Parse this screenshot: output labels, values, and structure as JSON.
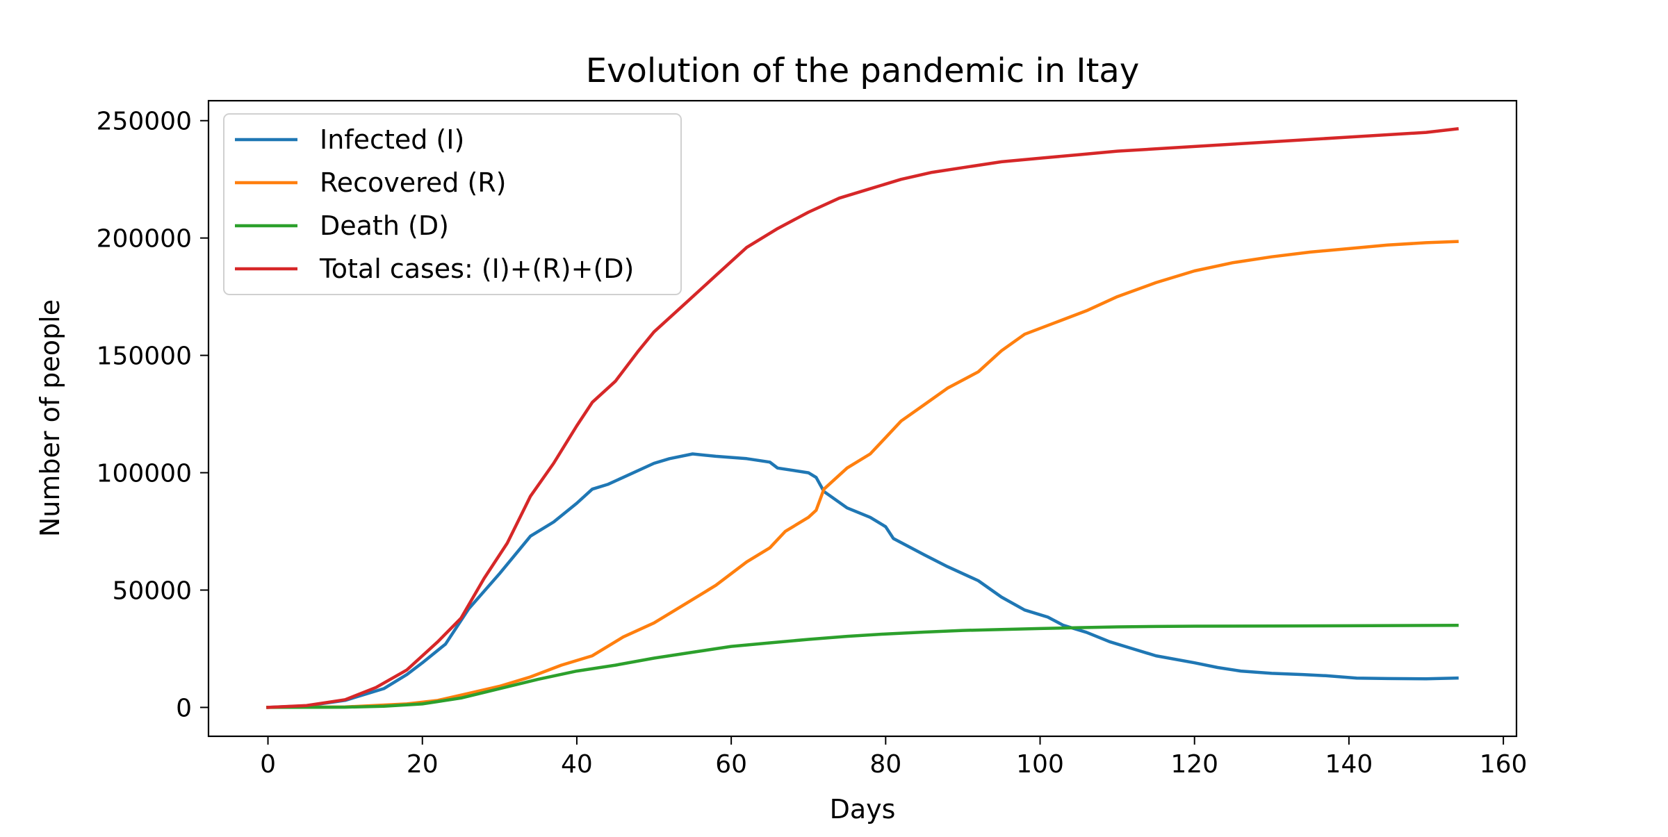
{
  "chart_data": {
    "type": "line",
    "title": "Evolution of the pandemic in Itay",
    "xlabel": "Days",
    "ylabel": "Number of people",
    "xlim": [
      -7.7,
      161.7
    ],
    "ylim": [
      -12300,
      258500
    ],
    "xticks": [
      0,
      20,
      40,
      60,
      80,
      100,
      120,
      140,
      160
    ],
    "yticks": [
      0,
      50000,
      100000,
      150000,
      200000,
      250000
    ],
    "legend_position": "top-left",
    "series": [
      {
        "name": "Infected (I)",
        "color": "#1f77b4",
        "points": [
          [
            0,
            0
          ],
          [
            5,
            700
          ],
          [
            10,
            3000
          ],
          [
            15,
            8000
          ],
          [
            18,
            14000
          ],
          [
            20,
            19000
          ],
          [
            23,
            27000
          ],
          [
            26,
            42000
          ],
          [
            30,
            57000
          ],
          [
            34,
            73000
          ],
          [
            37,
            79000
          ],
          [
            40,
            87000
          ],
          [
            42,
            93000
          ],
          [
            44,
            95000
          ],
          [
            46,
            98000
          ],
          [
            50,
            104000
          ],
          [
            52,
            106000
          ],
          [
            55,
            108000
          ],
          [
            58,
            107000
          ],
          [
            62,
            106000
          ],
          [
            65,
            104500
          ],
          [
            66,
            102000
          ],
          [
            70,
            100000
          ],
          [
            71,
            98000
          ],
          [
            72,
            92000
          ],
          [
            75,
            85000
          ],
          [
            78,
            81000
          ],
          [
            80,
            77000
          ],
          [
            81,
            72000
          ],
          [
            85,
            65000
          ],
          [
            88,
            60000
          ],
          [
            92,
            54000
          ],
          [
            95,
            47000
          ],
          [
            98,
            41500
          ],
          [
            101,
            38500
          ],
          [
            103,
            35000
          ],
          [
            106,
            32000
          ],
          [
            109,
            28000
          ],
          [
            112,
            25000
          ],
          [
            115,
            22000
          ],
          [
            120,
            19000
          ],
          [
            123,
            17000
          ],
          [
            126,
            15500
          ],
          [
            130,
            14500
          ],
          [
            134,
            14000
          ],
          [
            137,
            13500
          ],
          [
            141,
            12500
          ],
          [
            145,
            12300
          ],
          [
            150,
            12200
          ],
          [
            154,
            12500
          ]
        ]
      },
      {
        "name": "Recovered (R)",
        "color": "#ff7f0e",
        "points": [
          [
            0,
            0
          ],
          [
            10,
            200
          ],
          [
            18,
            1500
          ],
          [
            22,
            3000
          ],
          [
            26,
            6000
          ],
          [
            30,
            9000
          ],
          [
            34,
            13000
          ],
          [
            38,
            18000
          ],
          [
            42,
            22000
          ],
          [
            46,
            30000
          ],
          [
            50,
            36000
          ],
          [
            54,
            44000
          ],
          [
            58,
            52000
          ],
          [
            62,
            62000
          ],
          [
            65,
            68000
          ],
          [
            67,
            75000
          ],
          [
            70,
            81000
          ],
          [
            71,
            84000
          ],
          [
            72,
            93000
          ],
          [
            75,
            102000
          ],
          [
            78,
            108000
          ],
          [
            80,
            115000
          ],
          [
            82,
            122000
          ],
          [
            85,
            129000
          ],
          [
            88,
            136000
          ],
          [
            92,
            143000
          ],
          [
            95,
            152000
          ],
          [
            98,
            159000
          ],
          [
            102,
            164000
          ],
          [
            106,
            169000
          ],
          [
            110,
            175000
          ],
          [
            115,
            181000
          ],
          [
            120,
            186000
          ],
          [
            125,
            189500
          ],
          [
            130,
            192000
          ],
          [
            135,
            194000
          ],
          [
            140,
            195500
          ],
          [
            145,
            197000
          ],
          [
            150,
            198000
          ],
          [
            154,
            198500
          ]
        ]
      },
      {
        "name": "Death (D)",
        "color": "#2ca02c",
        "points": [
          [
            0,
            0
          ],
          [
            10,
            100
          ],
          [
            15,
            500
          ],
          [
            20,
            1500
          ],
          [
            25,
            4000
          ],
          [
            30,
            8000
          ],
          [
            35,
            12000
          ],
          [
            40,
            15500
          ],
          [
            45,
            18000
          ],
          [
            50,
            21000
          ],
          [
            55,
            23500
          ],
          [
            60,
            26000
          ],
          [
            65,
            27500
          ],
          [
            70,
            29000
          ],
          [
            75,
            30300
          ],
          [
            80,
            31300
          ],
          [
            85,
            32100
          ],
          [
            90,
            32800
          ],
          [
            95,
            33200
          ],
          [
            100,
            33600
          ],
          [
            105,
            34000
          ],
          [
            110,
            34300
          ],
          [
            115,
            34500
          ],
          [
            120,
            34600
          ],
          [
            130,
            34700
          ],
          [
            140,
            34800
          ],
          [
            154,
            35000
          ]
        ]
      },
      {
        "name": "Total cases: (I)+(R)+(D)",
        "color": "#d62728",
        "points": [
          [
            0,
            0
          ],
          [
            5,
            800
          ],
          [
            10,
            3300
          ],
          [
            14,
            8500
          ],
          [
            18,
            16000
          ],
          [
            22,
            28000
          ],
          [
            25,
            38000
          ],
          [
            28,
            55000
          ],
          [
            31,
            70000
          ],
          [
            34,
            90000
          ],
          [
            37,
            104000
          ],
          [
            40,
            120000
          ],
          [
            42,
            130000
          ],
          [
            45,
            139000
          ],
          [
            48,
            152000
          ],
          [
            50,
            160000
          ],
          [
            54,
            172000
          ],
          [
            58,
            184000
          ],
          [
            62,
            196000
          ],
          [
            66,
            204000
          ],
          [
            70,
            211000
          ],
          [
            74,
            217000
          ],
          [
            78,
            221000
          ],
          [
            82,
            225000
          ],
          [
            86,
            228000
          ],
          [
            90,
            230000
          ],
          [
            95,
            232500
          ],
          [
            100,
            234000
          ],
          [
            105,
            235500
          ],
          [
            110,
            237000
          ],
          [
            115,
            238000
          ],
          [
            120,
            239000
          ],
          [
            125,
            240000
          ],
          [
            130,
            241000
          ],
          [
            140,
            243000
          ],
          [
            150,
            245000
          ],
          [
            154,
            246500
          ]
        ]
      }
    ]
  }
}
